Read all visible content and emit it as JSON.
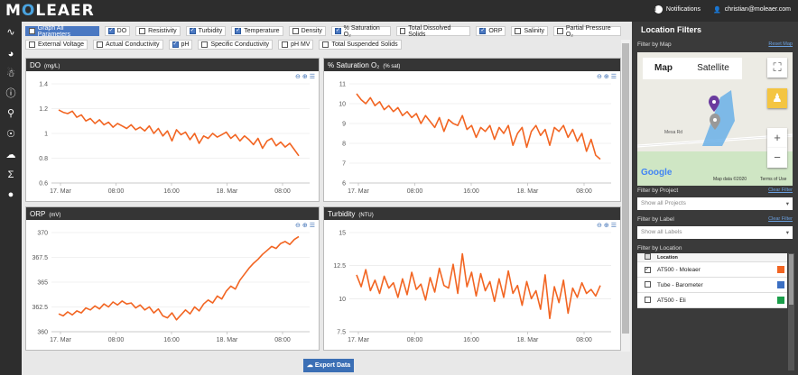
{
  "topbar": {
    "logo_a": "M",
    "logo_b": "O",
    "logo_c": "LEAER",
    "notifications": "Notifications",
    "user_email": "christian@moleaer.com"
  },
  "filters": {
    "row1": [
      {
        "label": "Graph All Parameters",
        "checked": false,
        "all": true
      },
      {
        "label": "DO",
        "checked": true
      },
      {
        "label": "Resistivity",
        "checked": false
      },
      {
        "label": "Turbidity",
        "checked": true
      },
      {
        "label": "Temperature",
        "checked": true
      },
      {
        "label": "Density",
        "checked": false
      },
      {
        "label": "% Saturation O₂",
        "checked": true
      },
      {
        "label": "Total Dissolved Solids",
        "checked": false
      },
      {
        "label": "ORP",
        "checked": true
      },
      {
        "label": "Salinity",
        "checked": false
      },
      {
        "label": "Partial Pressure O₂",
        "checked": false
      }
    ],
    "row2": [
      {
        "label": "External Voltage",
        "checked": false
      },
      {
        "label": "Actual Conductivity",
        "checked": false
      },
      {
        "label": "pH",
        "checked": true
      },
      {
        "label": "Specific Conductivity",
        "checked": false
      },
      {
        "label": "pH MV",
        "checked": false
      },
      {
        "label": "Total Suspended Solids",
        "checked": false
      }
    ]
  },
  "export_label": "Export Data",
  "charts": [
    {
      "title": "DO",
      "unit": "(mg/L)"
    },
    {
      "title": "% Saturation O₂",
      "unit": "(% sat)"
    },
    {
      "title": "ORP",
      "unit": "(mV)"
    },
    {
      "title": "Turbidity",
      "unit": "(NTU)"
    }
  ],
  "chart_data": [
    {
      "type": "line",
      "title": "DO (mg/L)",
      "x_ticks": [
        "17. Mar",
        "08:00",
        "16:00",
        "18. Mar",
        "08:00"
      ],
      "y_ticks": [
        "1.4",
        "1.2",
        "1",
        "0.8",
        "0.6"
      ],
      "ylim": [
        0.6,
        1.4
      ],
      "series": [
        {
          "name": "AT500 - Moleaer",
          "color": "#f26522",
          "values": [
            1.19,
            1.17,
            1.16,
            1.18,
            1.13,
            1.15,
            1.1,
            1.12,
            1.08,
            1.11,
            1.07,
            1.09,
            1.05,
            1.08,
            1.06,
            1.04,
            1.07,
            1.03,
            1.05,
            1.02,
            1.06,
            1.0,
            1.04,
            0.98,
            1.02,
            0.94,
            1.03,
            0.99,
            1.01,
            0.95,
            1.0,
            0.92,
            0.98,
            0.96,
            1.0,
            0.97,
            0.99,
            1.01,
            0.96,
            0.99,
            0.94,
            0.98,
            0.95,
            0.91,
            0.96,
            0.88,
            0.94,
            0.96,
            0.9,
            0.93,
            0.89,
            0.92,
            0.87,
            0.82
          ]
        }
      ]
    },
    {
      "type": "line",
      "title": "% Saturation O₂ (% sat)",
      "x_ticks": [
        "17. Mar",
        "08:00",
        "16:00",
        "18. Mar",
        "08:00"
      ],
      "y_ticks": [
        "11",
        "10",
        "9",
        "8",
        "7",
        "6"
      ],
      "ylim": [
        6,
        11
      ],
      "series": [
        {
          "name": "AT500 - Moleaer",
          "color": "#f26522",
          "values": [
            10.5,
            10.2,
            10.0,
            10.3,
            9.9,
            10.1,
            9.7,
            9.9,
            9.6,
            9.8,
            9.4,
            9.6,
            9.3,
            9.5,
            9.0,
            9.4,
            9.1,
            8.8,
            9.3,
            8.6,
            9.2,
            9.0,
            8.9,
            9.4,
            8.7,
            8.9,
            8.3,
            8.8,
            8.6,
            8.9,
            8.2,
            8.8,
            8.5,
            8.9,
            7.9,
            8.5,
            8.8,
            7.8,
            8.6,
            8.9,
            8.4,
            8.7,
            7.9,
            8.8,
            8.6,
            8.9,
            8.3,
            8.7,
            8.1,
            8.5,
            7.6,
            8.2,
            7.4,
            7.2
          ]
        }
      ]
    },
    {
      "type": "line",
      "title": "ORP (mV)",
      "x_ticks": [
        "17. Mar",
        "08:00",
        "16:00",
        "18. Mar",
        "08:00"
      ],
      "y_ticks": [
        "370",
        "367.5",
        "365",
        "362.5",
        "360"
      ],
      "ylim": [
        360,
        370
      ],
      "series": [
        {
          "name": "AT500 - Moleaer",
          "color": "#f26522",
          "values": [
            361.8,
            361.6,
            362.0,
            361.7,
            362.1,
            361.9,
            362.4,
            362.2,
            362.6,
            362.3,
            362.8,
            362.5,
            363.0,
            362.7,
            363.1,
            362.8,
            362.9,
            362.4,
            362.7,
            362.2,
            362.5,
            361.9,
            362.3,
            361.6,
            361.4,
            361.9,
            361.2,
            361.7,
            362.2,
            361.8,
            362.5,
            362.1,
            362.8,
            363.2,
            362.9,
            363.6,
            363.3,
            364.1,
            364.6,
            364.3,
            365.2,
            365.8,
            366.4,
            366.9,
            367.3,
            367.8,
            368.2,
            368.6,
            368.4,
            368.9,
            369.1,
            368.8,
            369.3,
            369.6
          ]
        }
      ]
    },
    {
      "type": "line",
      "title": "Turbidity (NTU)",
      "x_ticks": [
        "17. Mar",
        "08:00",
        "16:00",
        "18. Mar",
        "08:00"
      ],
      "y_ticks": [
        "15",
        "12.5",
        "10",
        "7.5"
      ],
      "ylim": [
        7.5,
        15
      ],
      "series": [
        {
          "name": "AT500 - Moleaer",
          "color": "#f26522",
          "values": [
            11.8,
            10.9,
            12.2,
            10.6,
            11.4,
            10.4,
            11.7,
            10.8,
            11.2,
            10.1,
            11.5,
            10.3,
            12.0,
            10.7,
            11.1,
            9.9,
            11.6,
            10.5,
            12.3,
            11.0,
            10.8,
            12.6,
            10.4,
            13.4,
            10.9,
            12.0,
            10.2,
            11.9,
            10.6,
            11.3,
            9.8,
            11.5,
            10.1,
            12.1,
            10.4,
            11.0,
            9.5,
            11.3,
            10.0,
            10.6,
            9.2,
            11.8,
            8.5,
            10.9,
            9.7,
            11.4,
            8.9,
            10.8,
            10.1,
            11.2,
            10.4,
            10.7,
            10.2,
            11.0
          ]
        }
      ]
    }
  ],
  "right": {
    "title": "Location Filters",
    "filter_map": "Filter by Map",
    "reset_map": "Reset Map",
    "map_tab": "Map",
    "satellite_tab": "Satellite",
    "road_label": "Mesa Rd",
    "map_credit": "Map data ©2020",
    "terms": "Terms of Use",
    "google": "Google",
    "filter_project": "Filter by Project",
    "clear_project": "Clear Filter",
    "project_placeholder": "Show all Projects",
    "filter_label": "Filter by Label",
    "clear_label": "Clear Filter",
    "label_placeholder": "Show all Labels",
    "filter_location": "Filter by Location",
    "loc_header": "Location",
    "locations": [
      {
        "name": "AT500 - Moleaer",
        "checked": true,
        "color": "#f26522"
      },
      {
        "name": "Tube - Barometer",
        "checked": false,
        "color": "#3b6fc2"
      },
      {
        "name": "AT500 - Eli",
        "checked": false,
        "color": "#1a9e4a"
      }
    ]
  }
}
